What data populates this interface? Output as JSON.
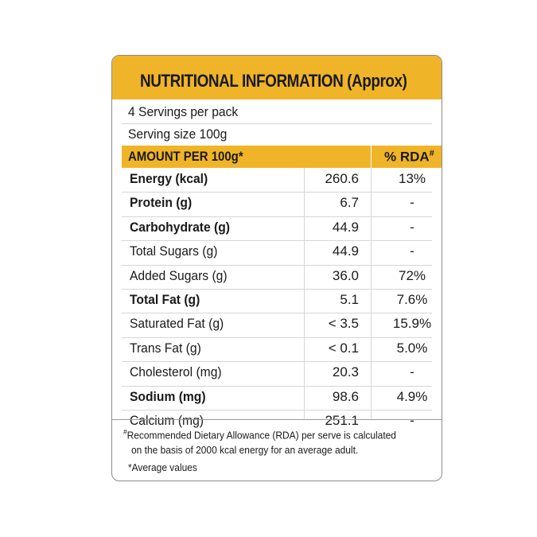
{
  "title": "NUTRITIONAL INFORMATION (Approx)",
  "servings_per_pack": "4 Servings per pack",
  "serving_size": "Serving size 100g",
  "columns": {
    "amount": "AMOUNT PER 100g*",
    "rda": "% RDA#"
  },
  "rows": [
    {
      "name": "Energy (kcal)",
      "value": "260.6",
      "rda": "13%",
      "bold": true
    },
    {
      "name": "Protein (g)",
      "value": "6.7",
      "rda": "-",
      "bold": true
    },
    {
      "name": "Carbohydrate (g)",
      "value": "44.9",
      "rda": "-",
      "bold": true
    },
    {
      "name": "Total Sugars (g)",
      "value": "44.9",
      "rda": "-",
      "bold": false
    },
    {
      "name": "Added Sugars (g)",
      "value": "36.0",
      "rda": "72%",
      "bold": false
    },
    {
      "name": "Total Fat (g)",
      "value": "5.1",
      "rda": "7.6%",
      "bold": true
    },
    {
      "name": "Saturated Fat (g)",
      "value": "< 3.5",
      "rda": "15.9%",
      "bold": false
    },
    {
      "name": "Trans Fat (g)",
      "value": "< 0.1",
      "rda": "5.0%",
      "bold": false
    },
    {
      "name": "Cholesterol (mg)",
      "value": "20.3",
      "rda": "-",
      "bold": false
    },
    {
      "name": "Sodium (mg)",
      "value": "98.6",
      "rda": "4.9%",
      "bold": true
    },
    {
      "name": "Calcium (mg)",
      "value": "251.1",
      "rda": "-",
      "bold": false
    }
  ],
  "footnotes": {
    "rda_mark": "#",
    "rda_line1": "Recommended Dietary Allowance (RDA) per serve is calculated",
    "rda_line2": "on the basis  of 2000 kcal energy for an average adult.",
    "average": "*Average values"
  },
  "colors": {
    "accent": "#f0b429",
    "border": "#8a8a8a",
    "divider": "#d6d6d6"
  }
}
